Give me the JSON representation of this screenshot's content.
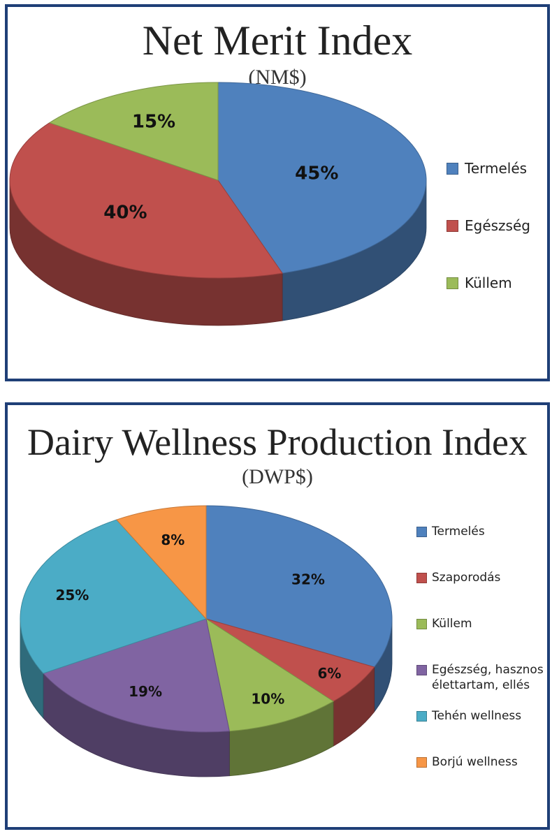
{
  "chart_data": [
    {
      "type": "pie",
      "title": "Net Merit Index",
      "subtitle": "(NM$)",
      "legend_position": "right",
      "slices": [
        {
          "label": "Termelés",
          "value": 45,
          "value_label": "45%",
          "color": "#4f81bd"
        },
        {
          "label": "Egészség",
          "value": 40,
          "value_label": "40%",
          "color": "#c0504d"
        },
        {
          "label": "Küllem",
          "value": 15,
          "value_label": "15%",
          "color": "#9bbb59"
        }
      ]
    },
    {
      "type": "pie",
      "title": "Dairy Wellness Production Index",
      "subtitle": "(DWP$)",
      "legend_position": "right",
      "slices": [
        {
          "label": "Termelés",
          "value": 32,
          "value_label": "32%",
          "color": "#4f81bd"
        },
        {
          "label": "Szaporodás",
          "value": 6,
          "value_label": "6%",
          "color": "#c0504d"
        },
        {
          "label": "Küllem",
          "value": 10,
          "value_label": "10%",
          "color": "#9bbb59"
        },
        {
          "label": "Egészség, hasznos élettartam, ellés",
          "value": 19,
          "value_label": "19%",
          "color": "#8064a2"
        },
        {
          "label": "Tehén wellness",
          "value": 25,
          "value_label": "25%",
          "color": "#4bacc6"
        },
        {
          "label": "Borjú wellness",
          "value": 8,
          "value_label": "8%",
          "color": "#f79646"
        }
      ]
    }
  ]
}
